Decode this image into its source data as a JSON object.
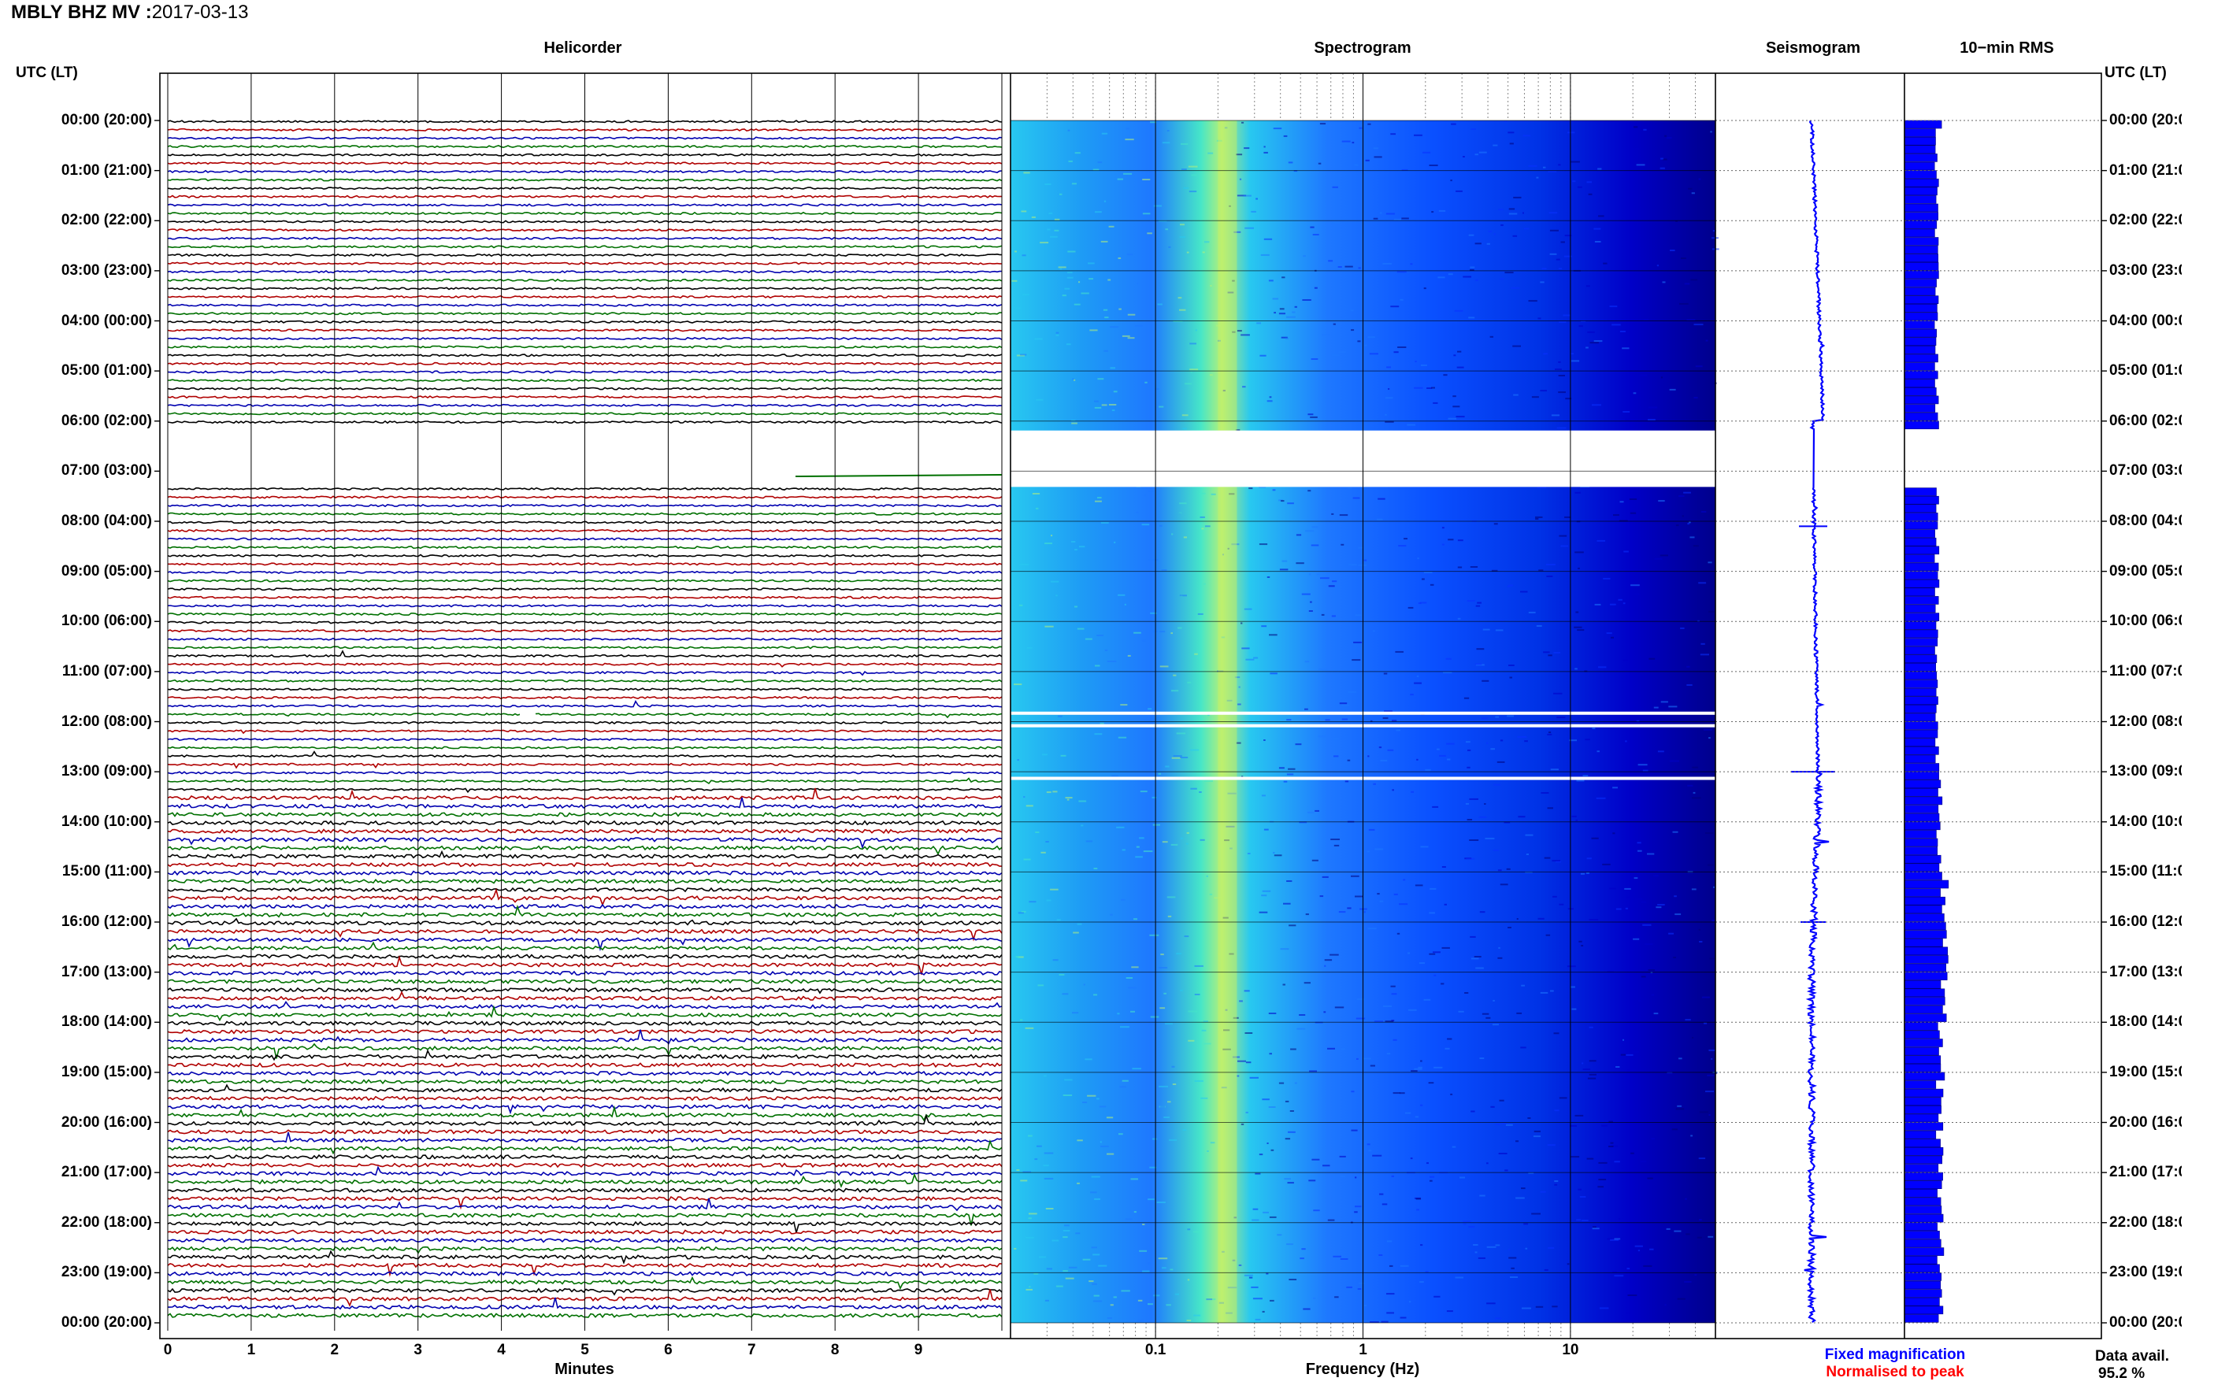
{
  "header": {
    "station": "MBLY BHZ MV",
    "separator": ":",
    "date": "2017-03-13"
  },
  "panels": {
    "helicorder": "Helicorder",
    "spectrogram": "Spectrogram",
    "seismogram": "Seismogram",
    "rms": "10−min RMS"
  },
  "axis_labels": {
    "utc_left": "UTC (LT)",
    "utc_right": "UTC (LT)",
    "minutes": "Minutes",
    "frequency": "Frequency (Hz)"
  },
  "legend": {
    "fixed": "Fixed magnification",
    "normalised": "Normalised to peak",
    "fixed_color": "#0000ff",
    "normalised_color": "#ff0000"
  },
  "data_avail": {
    "label": "Data avail.",
    "value": "95.2 %"
  },
  "chart_data": {
    "type": "helicorder",
    "time_ticks": [
      "00:00 (20:00)",
      "01:00 (21:00)",
      "02:00 (22:00)",
      "03:00 (23:00)",
      "04:00 (00:00)",
      "05:00 (01:00)",
      "06:00 (02:00)",
      "07:00 (03:00)",
      "08:00 (04:00)",
      "09:00 (05:00)",
      "10:00 (06:00)",
      "11:00 (07:00)",
      "12:00 (08:00)",
      "13:00 (09:00)",
      "14:00 (10:00)",
      "15:00 (11:00)",
      "16:00 (12:00)",
      "17:00 (13:00)",
      "18:00 (14:00)",
      "19:00 (15:00)",
      "20:00 (16:00)",
      "21:00 (17:00)",
      "22:00 (18:00)",
      "23:00 (19:00)",
      "00:00 (20:00)"
    ],
    "minute_ticks": [
      "0",
      "1",
      "2",
      "3",
      "4",
      "5",
      "6",
      "7",
      "8",
      "9"
    ],
    "frequency_ticks": [
      {
        "label": "0.1",
        "hz": 0.1
      },
      {
        "label": "1",
        "hz": 1
      },
      {
        "label": "10",
        "hz": 10
      }
    ],
    "frequency_range_hz": [
      0.02,
      50
    ],
    "minutes_range": [
      0,
      10
    ],
    "trace_colors": [
      "#000000",
      "#b00000",
      "#0000b0",
      "#007000"
    ],
    "data_gap": {
      "start_utc": "06:00",
      "end_utc": "07:10"
    },
    "spectrogram_colors": [
      "#00007a",
      "#0000c8",
      "#0a32ff",
      "#1e78ff",
      "#28c8f0",
      "#46e6c8",
      "#b4f078",
      "#f0f046"
    ]
  }
}
